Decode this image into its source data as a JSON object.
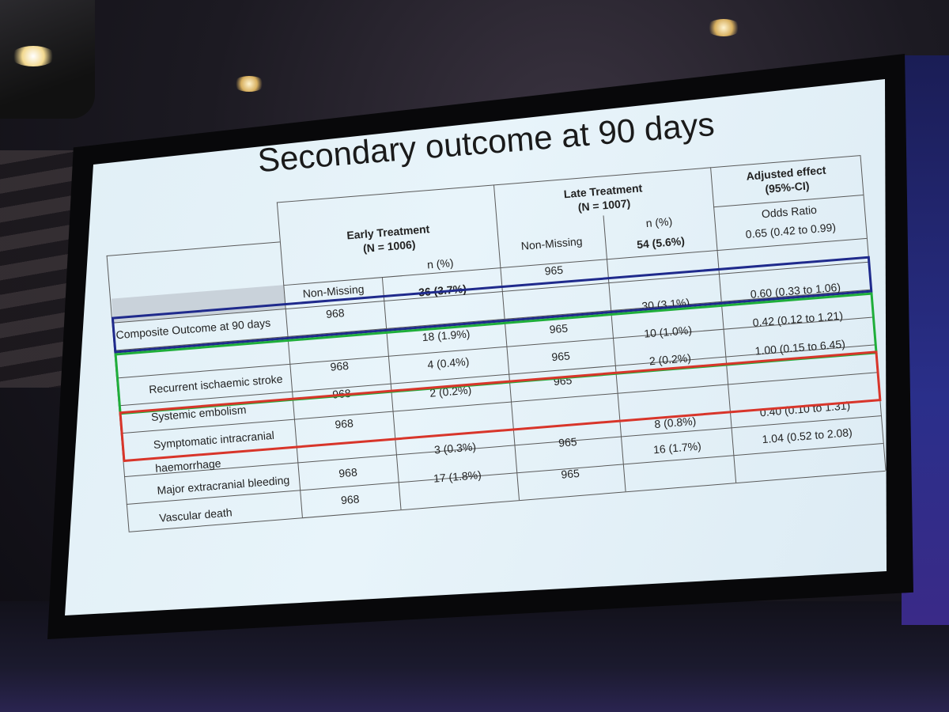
{
  "slide": {
    "title": "Secondary outcome at 90 days",
    "header": {
      "early_treatment": "Early Treatment",
      "early_n": "(N = 1006)",
      "late_treatment": "Late Treatment",
      "late_n": "(N = 1007)",
      "adjusted_effect": "Adjusted effect",
      "ci": "(95%-CI)",
      "odds_ratio": "Odds Ratio",
      "non_missing_early": "Non-Missing",
      "n_pct_early": "n (%)",
      "non_missing_late": "Non-Missing",
      "n_pct_late": "n (%)"
    },
    "rows": [
      {
        "label": "Composite Outcome at 90 days",
        "early_nm": "968",
        "early_n": "36 (3.7%)",
        "late_nm": "965",
        "late_n": "54 (5.6%)",
        "or": "0.65 (0.42 to 0.99)"
      },
      {
        "label": "Recurrent ischaemic stroke",
        "early_nm": "968",
        "early_n": "18 (1.9%)",
        "late_nm": "965",
        "late_n": "30 (3.1%)",
        "or": "0.60 (0.33 to 1.06)"
      },
      {
        "label": "Systemic embolism",
        "early_nm": "968",
        "early_n": "4 (0.4%)",
        "late_nm": "965",
        "late_n": "10 (1.0%)",
        "or": "0.42 (0.12 to 1.21)"
      },
      {
        "label": "Symptomatic intracranial",
        "label2": "haemorrhage",
        "early_nm": "968",
        "early_n": "2 (0.2%)",
        "late_nm": "965",
        "late_n": "2 (0.2%)",
        "or": "1.00 (0.15 to 6.45)"
      },
      {
        "label": "Major extracranial bleeding",
        "early_nm": "968",
        "early_n": "3 (0.3%)",
        "late_nm": "965",
        "late_n": "8 (0.8%)",
        "or": "0.40 (0.10 to 1.31)"
      },
      {
        "label": "Vascular death",
        "early_nm": "968",
        "early_n": "17 (1.8%)",
        "late_nm": "965",
        "late_n": "16 (1.7%)",
        "or": "1.04 (0.52 to 2.08)"
      }
    ],
    "highlight_colors": {
      "composite": "#1f2a8c",
      "green": "#1fae3a",
      "red": "#d8352a"
    }
  }
}
